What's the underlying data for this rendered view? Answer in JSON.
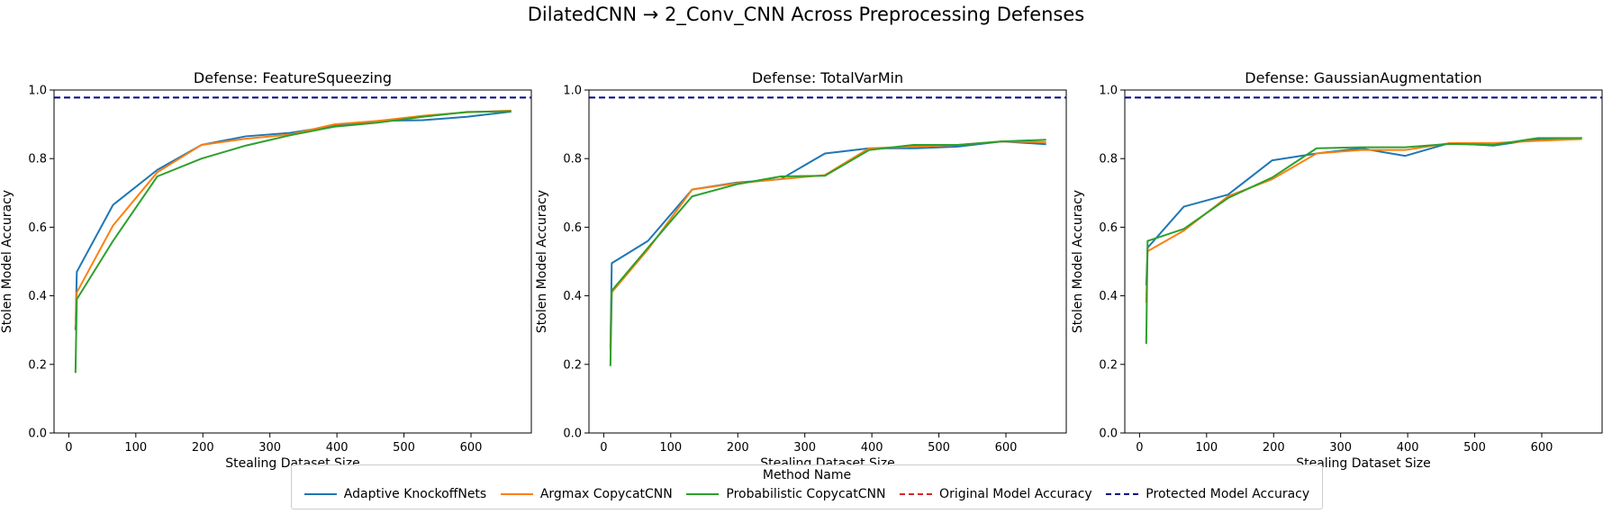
{
  "figure": {
    "suptitle": "DilatedCNN → 2_Conv_CNN Across Preprocessing Defenses",
    "legend_title": "Method Name",
    "legend": [
      {
        "label": "Adaptive KnockoffNets",
        "color": "#1f77b4",
        "style": "solid"
      },
      {
        "label": "Argmax CopycatCNN",
        "color": "#ff7f0e",
        "style": "solid"
      },
      {
        "label": "Probabilistic CopycatCNN",
        "color": "#2ca02c",
        "style": "solid"
      },
      {
        "label": "Original Model Accuracy",
        "color": "#d62728",
        "style": "dashed"
      },
      {
        "label": "Protected Model Accuracy",
        "color": "#00008b",
        "style": "dashed"
      }
    ]
  },
  "chart_data": [
    {
      "type": "line",
      "title": "Defense: FeatureSqueezing",
      "xlabel": "Stealing Dataset Size",
      "ylabel": "Stolen Model Accuracy",
      "xlim": [
        -22,
        690
      ],
      "ylim": [
        0.0,
        1.0
      ],
      "xticks": [
        0,
        100,
        200,
        300,
        400,
        500,
        600
      ],
      "yticks": [
        0.0,
        0.2,
        0.4,
        0.6,
        0.8,
        1.0
      ],
      "grid": false,
      "hlines": [
        {
          "name": "Protected Model Accuracy",
          "y": 0.978,
          "color": "#00008b",
          "style": "dashed"
        }
      ],
      "series": [
        {
          "name": "Adaptive KnockoffNets",
          "color": "#1f77b4",
          "x": [
            10,
            12,
            66,
            132,
            198,
            264,
            330,
            396,
            462,
            528,
            594,
            660
          ],
          "y": [
            0.3,
            0.47,
            0.665,
            0.767,
            0.84,
            0.865,
            0.875,
            0.895,
            0.91,
            0.912,
            0.922,
            0.937
          ]
        },
        {
          "name": "Argmax CopycatCNN",
          "color": "#ff7f0e",
          "x": [
            10,
            12,
            66,
            132,
            198,
            264,
            330,
            396,
            462,
            528,
            594,
            660
          ],
          "y": [
            0.31,
            0.41,
            0.605,
            0.76,
            0.84,
            0.858,
            0.87,
            0.9,
            0.91,
            0.925,
            0.935,
            0.94
          ]
        },
        {
          "name": "Probabilistic CopycatCNN",
          "color": "#2ca02c",
          "x": [
            10,
            12,
            66,
            132,
            198,
            264,
            330,
            396,
            462,
            528,
            594,
            660
          ],
          "y": [
            0.175,
            0.39,
            0.56,
            0.748,
            0.8,
            0.838,
            0.868,
            0.893,
            0.905,
            0.922,
            0.936,
            0.938
          ]
        }
      ]
    },
    {
      "type": "line",
      "title": "Defense: TotalVarMin",
      "xlabel": "Stealing Dataset Size",
      "ylabel": "Stolen Model Accuracy",
      "xlim": [
        -22,
        690
      ],
      "ylim": [
        0.0,
        1.0
      ],
      "xticks": [
        0,
        100,
        200,
        300,
        400,
        500,
        600
      ],
      "yticks": [
        0.0,
        0.2,
        0.4,
        0.6,
        0.8,
        1.0
      ],
      "grid": false,
      "hlines": [
        {
          "name": "Protected Model Accuracy",
          "y": 0.978,
          "color": "#00008b",
          "style": "dashed"
        }
      ],
      "series": [
        {
          "name": "Adaptive KnockoffNets",
          "color": "#1f77b4",
          "x": [
            10,
            12,
            66,
            132,
            198,
            264,
            330,
            396,
            462,
            528,
            594,
            660
          ],
          "y": [
            0.25,
            0.495,
            0.56,
            0.71,
            0.73,
            0.74,
            0.815,
            0.83,
            0.83,
            0.835,
            0.85,
            0.842
          ]
        },
        {
          "name": "Argmax CopycatCNN",
          "color": "#ff7f0e",
          "x": [
            10,
            12,
            66,
            132,
            198,
            264,
            330,
            396,
            462,
            528,
            594,
            660
          ],
          "y": [
            0.24,
            0.41,
            0.535,
            0.71,
            0.728,
            0.74,
            0.752,
            0.83,
            0.835,
            0.84,
            0.85,
            0.848
          ]
        },
        {
          "name": "Probabilistic CopycatCNN",
          "color": "#2ca02c",
          "x": [
            10,
            12,
            66,
            132,
            198,
            264,
            330,
            396,
            462,
            528,
            594,
            660
          ],
          "y": [
            0.195,
            0.415,
            0.54,
            0.69,
            0.725,
            0.748,
            0.75,
            0.825,
            0.84,
            0.84,
            0.85,
            0.855
          ]
        }
      ]
    },
    {
      "type": "line",
      "title": "Defense: GaussianAugmentation",
      "xlabel": "Stealing Dataset Size",
      "ylabel": "Stolen Model Accuracy",
      "xlim": [
        -22,
        690
      ],
      "ylim": [
        0.0,
        1.0
      ],
      "xticks": [
        0,
        100,
        200,
        300,
        400,
        500,
        600
      ],
      "yticks": [
        0.0,
        0.2,
        0.4,
        0.6,
        0.8,
        1.0
      ],
      "grid": false,
      "hlines": [
        {
          "name": "Protected Model Accuracy",
          "y": 0.978,
          "color": "#00008b",
          "style": "dashed"
        }
      ],
      "series": [
        {
          "name": "Adaptive KnockoffNets",
          "color": "#1f77b4",
          "x": [
            10,
            12,
            66,
            132,
            198,
            264,
            330,
            396,
            462,
            528,
            594,
            660
          ],
          "y": [
            0.43,
            0.54,
            0.66,
            0.695,
            0.795,
            0.815,
            0.83,
            0.808,
            0.845,
            0.838,
            0.857,
            0.86
          ]
        },
        {
          "name": "Argmax CopycatCNN",
          "color": "#ff7f0e",
          "x": [
            10,
            12,
            66,
            132,
            198,
            264,
            330,
            396,
            462,
            528,
            594,
            660
          ],
          "y": [
            0.38,
            0.53,
            0.59,
            0.69,
            0.74,
            0.815,
            0.825,
            0.825,
            0.845,
            0.845,
            0.852,
            0.857
          ]
        },
        {
          "name": "Probabilistic CopycatCNN",
          "color": "#2ca02c",
          "x": [
            10,
            12,
            66,
            132,
            198,
            264,
            330,
            396,
            462,
            528,
            594,
            660
          ],
          "y": [
            0.26,
            0.56,
            0.595,
            0.685,
            0.745,
            0.83,
            0.833,
            0.833,
            0.843,
            0.84,
            0.86,
            0.86
          ]
        }
      ]
    }
  ]
}
